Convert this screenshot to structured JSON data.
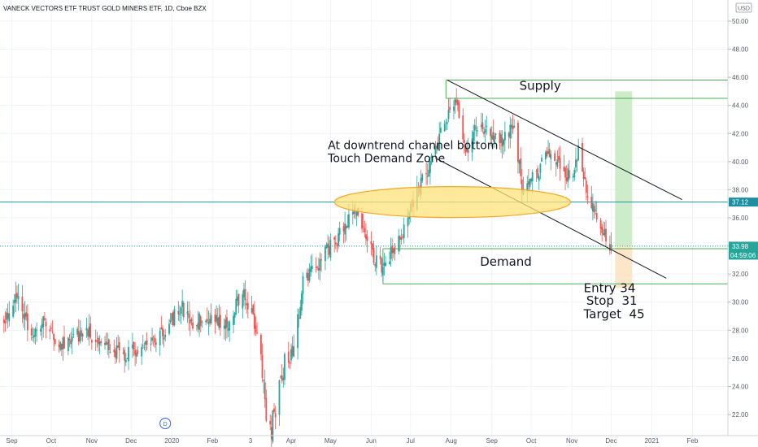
{
  "chart_data": {
    "type": "candlestick",
    "title": "VANECK VECTORS ETF TRUST GOLD MINERS ETF, 1D, Cboe BZX",
    "currency": "USD",
    "ylim": [
      20.5,
      51.5
    ],
    "y_ticks": [
      22,
      24,
      26,
      28,
      30,
      32,
      34,
      36,
      38,
      40,
      42,
      44,
      46,
      48,
      50
    ],
    "y_tick_labels": [
      "22.00",
      "24.00",
      "26.00",
      "28.00",
      "30.00",
      "32.00",
      "34.00",
      "36.00",
      "38.00",
      "40.00",
      "42.00",
      "44.00",
      "46.00",
      "48.00",
      "50.00"
    ],
    "x_range": [
      "2019-08-23",
      "2021-02-28"
    ],
    "x_ticks": [
      {
        "date": "2019-09-01",
        "label": "Sep"
      },
      {
        "date": "2019-10-01",
        "label": "Oct"
      },
      {
        "date": "2019-11-01",
        "label": "Nov"
      },
      {
        "date": "2019-12-01",
        "label": "Dec"
      },
      {
        "date": "2020-01-01",
        "label": "2020"
      },
      {
        "date": "2020-02-01",
        "label": "Feb"
      },
      {
        "date": "2020-03-01",
        "label": "3"
      },
      {
        "date": "2020-04-01",
        "label": "Apr"
      },
      {
        "date": "2020-05-01",
        "label": "May"
      },
      {
        "date": "2020-06-01",
        "label": "Jun"
      },
      {
        "date": "2020-07-01",
        "label": "Jul"
      },
      {
        "date": "2020-08-01",
        "label": "Aug"
      },
      {
        "date": "2020-09-01",
        "label": "Sep"
      },
      {
        "date": "2020-10-01",
        "label": "Oct"
      },
      {
        "date": "2020-11-01",
        "label": "Nov"
      },
      {
        "date": "2020-12-01",
        "label": "Dec"
      },
      {
        "date": "2021-01-01",
        "label": "2021"
      },
      {
        "date": "2021-02-01",
        "label": "Feb"
      }
    ],
    "colors": {
      "up": "#26a69a",
      "down": "#ef5350",
      "grid": "#f0f3fa",
      "channel": "#131722",
      "zone": "#4caf50",
      "hline": "#26a69a",
      "price_badge": "#1e8fa0",
      "last_badge": "#26a69a",
      "ellipse_fill": "#ffe37a",
      "ellipse_stroke": "#f5a623",
      "target_fill": "#c8ebc4",
      "stop_fill": "#fde2c4"
    },
    "anchors": [
      {
        "date": "2019-08-26",
        "price": 28.4
      },
      {
        "date": "2019-09-05",
        "price": 30.3
      },
      {
        "date": "2019-09-16",
        "price": 27.5
      },
      {
        "date": "2019-09-25",
        "price": 28.6
      },
      {
        "date": "2019-10-08",
        "price": 27.0
      },
      {
        "date": "2019-10-28",
        "price": 28.0
      },
      {
        "date": "2019-11-12",
        "price": 26.6
      },
      {
        "date": "2019-11-27",
        "price": 26.3
      },
      {
        "date": "2019-12-10",
        "price": 27.1
      },
      {
        "date": "2019-12-27",
        "price": 28.0
      },
      {
        "date": "2020-01-08",
        "price": 29.7
      },
      {
        "date": "2020-01-16",
        "price": 28.4
      },
      {
        "date": "2020-01-28",
        "price": 28.9
      },
      {
        "date": "2020-02-12",
        "price": 28.2
      },
      {
        "date": "2020-02-24",
        "price": 31.0
      },
      {
        "date": "2020-03-03",
        "price": 28.8
      },
      {
        "date": "2020-03-09",
        "price": 26.0
      },
      {
        "date": "2020-03-13",
        "price": 21.8
      },
      {
        "date": "2020-03-17",
        "price": 21.0
      },
      {
        "date": "2020-03-20",
        "price": 22.4
      },
      {
        "date": "2020-03-27",
        "price": 25.5
      },
      {
        "date": "2020-04-03",
        "price": 26.5
      },
      {
        "date": "2020-04-10",
        "price": 31.5
      },
      {
        "date": "2020-04-22",
        "price": 32.8
      },
      {
        "date": "2020-05-01",
        "price": 33.9
      },
      {
        "date": "2020-05-15",
        "price": 35.8
      },
      {
        "date": "2020-05-20",
        "price": 36.4
      },
      {
        "date": "2020-05-28",
        "price": 34.5
      },
      {
        "date": "2020-06-04",
        "price": 33.0
      },
      {
        "date": "2020-06-09",
        "price": 32.6
      },
      {
        "date": "2020-06-16",
        "price": 33.4
      },
      {
        "date": "2020-06-24",
        "price": 34.8
      },
      {
        "date": "2020-07-02",
        "price": 36.7
      },
      {
        "date": "2020-07-10",
        "price": 38.6
      },
      {
        "date": "2020-07-20",
        "price": 40.6
      },
      {
        "date": "2020-07-28",
        "price": 43.2
      },
      {
        "date": "2020-08-05",
        "price": 44.3
      },
      {
        "date": "2020-08-12",
        "price": 40.5
      },
      {
        "date": "2020-08-20",
        "price": 42.5
      },
      {
        "date": "2020-09-01",
        "price": 41.8
      },
      {
        "date": "2020-09-10",
        "price": 41.6
      },
      {
        "date": "2020-09-18",
        "price": 42.6
      },
      {
        "date": "2020-09-24",
        "price": 38.4
      },
      {
        "date": "2020-10-05",
        "price": 39.2
      },
      {
        "date": "2020-10-14",
        "price": 40.5
      },
      {
        "date": "2020-10-23",
        "price": 39.7
      },
      {
        "date": "2020-11-02",
        "price": 38.6
      },
      {
        "date": "2020-11-06",
        "price": 41.0
      },
      {
        "date": "2020-11-10",
        "price": 38.5
      },
      {
        "date": "2020-11-20",
        "price": 36.3
      },
      {
        "date": "2020-11-30",
        "price": 33.8
      },
      {
        "date": "2020-12-01",
        "price": 33.9
      }
    ],
    "levels": {
      "blue_line": 37.12,
      "last_price": 33.98,
      "supply_top": 45.8,
      "supply_bottom": 44.5,
      "demand_top": 33.8,
      "demand_bottom": 31.3
    },
    "channel": {
      "upper": [
        {
          "date": "2020-07-29",
          "price": 45.8
        },
        {
          "date": "2021-01-24",
          "price": 37.3
        }
      ],
      "lower": [
        {
          "date": "2020-07-21",
          "price": 40.2
        },
        {
          "date": "2021-01-12",
          "price": 31.7
        }
      ]
    },
    "zones": {
      "supply": {
        "start": "2020-07-28",
        "end": "2021-02-28",
        "top": 45.8,
        "bottom": 44.5
      },
      "demand": {
        "start": "2020-06-10",
        "end": "2021-02-28",
        "top": 33.8,
        "bottom": 31.3
      }
    },
    "position": {
      "start": "2020-12-04",
      "end": "2020-12-17",
      "entry": 34,
      "stop": 31,
      "target": 45
    },
    "ellipse": {
      "start": "2020-05-04",
      "end": "2020-10-31",
      "price": 37.12,
      "half_height": 1.1
    },
    "annotations": [
      {
        "id": "channel_note_1",
        "text": "At downtrend channel bottom",
        "date": "2020-04-29",
        "price": 40.9
      },
      {
        "id": "channel_note_2",
        "text": "Touch Demand Zone",
        "date": "2020-04-29",
        "price": 39.95
      },
      {
        "id": "supply_label",
        "text": "Supply",
        "date": "2020-09-22",
        "price": 45.1
      },
      {
        "id": "demand_label",
        "text": "Demand",
        "date": "2020-08-23",
        "price": 32.6
      },
      {
        "id": "entry_label",
        "text": "Entry 34",
        "date": "2020-11-10",
        "price": 30.7
      },
      {
        "id": "stop_label",
        "text": "Stop  31",
        "date": "2020-11-12",
        "price": 29.8
      },
      {
        "id": "target_label",
        "text": "Target  45",
        "date": "2020-11-10",
        "price": 28.85
      }
    ],
    "badges": {
      "blue_price": "37.12",
      "last_price": "33.98",
      "countdown": "04:59:06",
      "currency": "USD",
      "dividend_marker": "D",
      "dividend_date": "2019-12-27"
    }
  }
}
